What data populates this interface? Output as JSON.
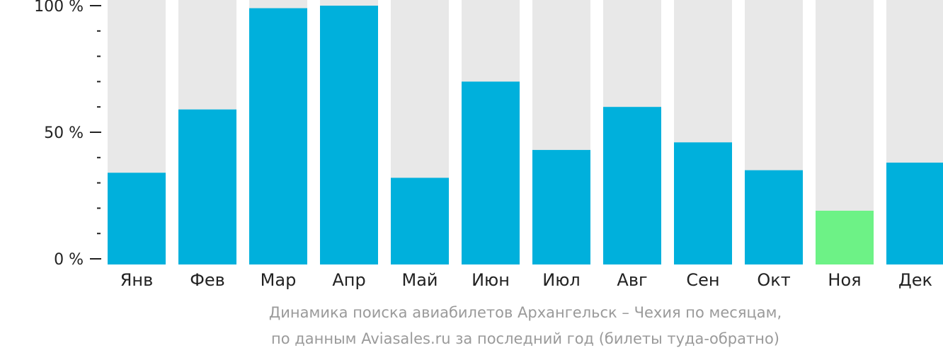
{
  "chart_data": {
    "type": "bar",
    "categories": [
      "Янв",
      "Фев",
      "Мар",
      "Апр",
      "Май",
      "Июн",
      "Июл",
      "Авг",
      "Сен",
      "Окт",
      "Ноя",
      "Дек"
    ],
    "values": [
      34,
      59,
      99,
      100,
      32,
      70,
      43,
      60,
      46,
      35,
      19,
      38
    ],
    "ylim": [
      0,
      100
    ],
    "yticks": [
      {
        "value": 0,
        "label": "0 %"
      },
      {
        "value": 50,
        "label": "50 %"
      },
      {
        "value": 100,
        "label": "100 %"
      }
    ],
    "minor_ticks": [
      10,
      20,
      30,
      40,
      60,
      70,
      80,
      90
    ],
    "highlight_index": 10,
    "colors": {
      "bar": "#00b0dc",
      "highlight": "#6df286",
      "track": "#e8e8e8",
      "axis": "#222222"
    }
  },
  "caption": {
    "line1": "Динамика поиска авиабилетов Архангельск – Чехия по месяцам,",
    "line2": "по данным Aviasales.ru за последний год (билеты туда-обратно)"
  }
}
